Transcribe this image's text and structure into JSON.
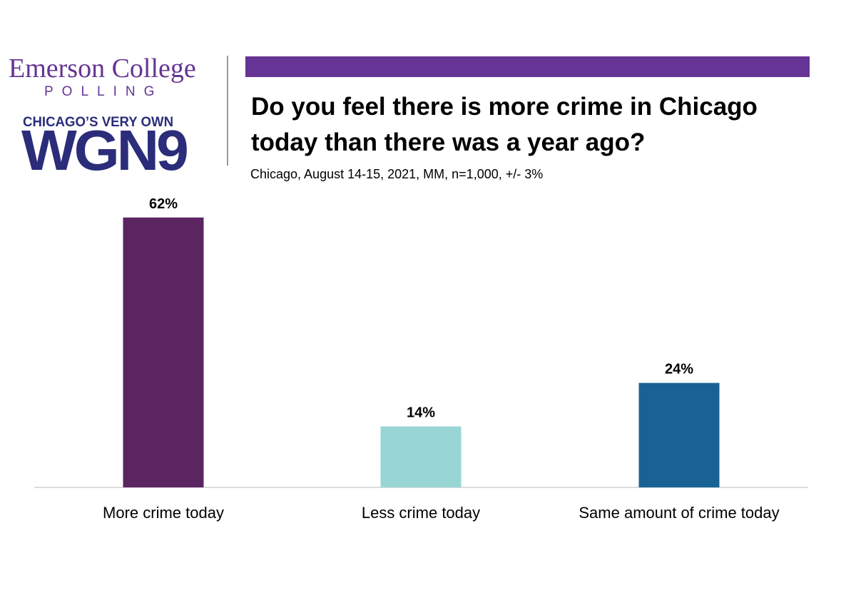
{
  "branding": {
    "org_name": "Emerson College",
    "org_sub": "POLLING",
    "partner_tagline": "CHICAGO’S VERY OWN",
    "partner_logo": "WGN9",
    "brand_color": "#653494",
    "partner_color": "#2b2d7a"
  },
  "chart_data": {
    "type": "bar",
    "title": "Do you feel there is more crime in Chicago today than there was a year ago?",
    "subtitle": "Chicago, August 14-15, 2021, MM, n=1,000, +/- 3%",
    "xlabel": "",
    "ylabel": "",
    "ylim": [
      0,
      100
    ],
    "grid": false,
    "categories": [
      "More crime today",
      "Less crime today",
      "Same amount of crime today"
    ],
    "values": [
      62,
      14,
      24
    ],
    "data_labels": [
      "62%",
      "14%",
      "24%"
    ],
    "colors": [
      "#5a2561",
      "#98d6d6",
      "#186393"
    ]
  }
}
